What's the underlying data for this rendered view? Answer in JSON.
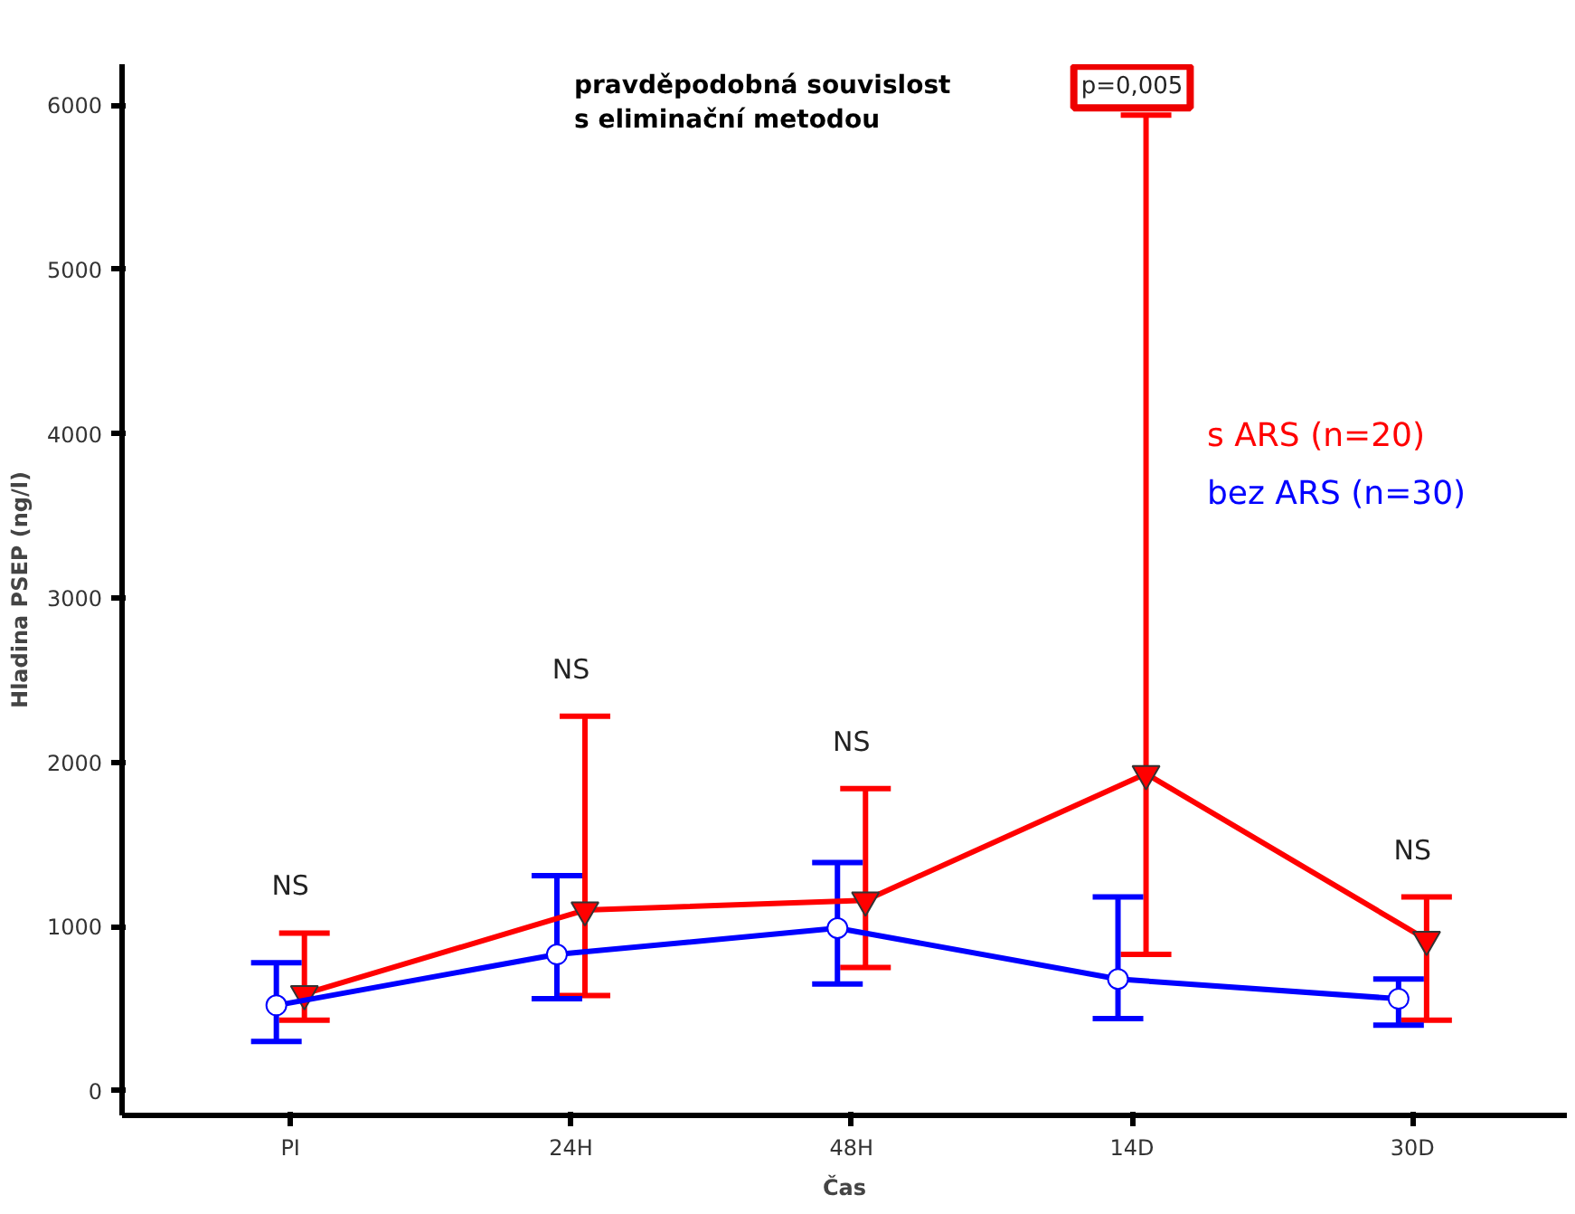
{
  "chart_data": {
    "type": "line",
    "title": "pravděpodobná souvislost\ns eliminační metodou",
    "xlabel": "Čas",
    "ylabel": "Hladina PSEP (ng/l)",
    "categories": [
      "PI",
      "24H",
      "48H",
      "14D",
      "30D"
    ],
    "series": [
      {
        "name": "s ARS (n=20)",
        "color": "#ff0000",
        "marker": "triangle",
        "values": [
          590,
          1100,
          1160,
          1930,
          920
        ],
        "errors": [
          [
            430,
            960
          ],
          [
            580,
            2280
          ],
          [
            750,
            1840
          ],
          [
            830,
            5940
          ],
          [
            430,
            1180
          ]
        ]
      },
      {
        "name": "bez ARS (n=30)",
        "color": "#0000ff",
        "marker": "circle",
        "values": [
          520,
          830,
          990,
          680,
          560
        ],
        "errors": [
          [
            300,
            780
          ],
          [
            560,
            1310
          ],
          [
            650,
            1390
          ],
          [
            440,
            1180
          ],
          [
            400,
            680
          ]
        ]
      }
    ],
    "ylim": [
      -150,
      6250
    ],
    "yticks": [
      0,
      1000,
      2000,
      3000,
      4000,
      5000,
      6000
    ],
    "grid": false,
    "legend": "right",
    "annotations": [
      "NS",
      "NS",
      "NS",
      "p=0,005",
      "NS"
    ]
  }
}
